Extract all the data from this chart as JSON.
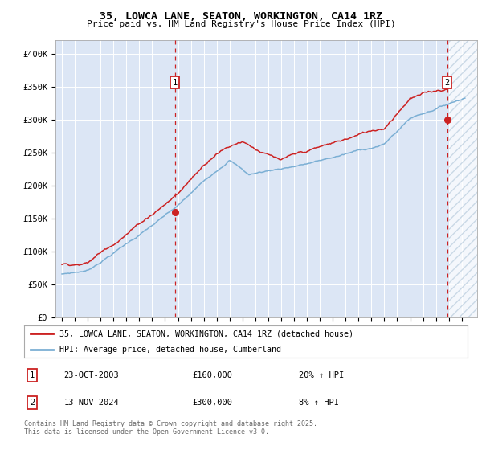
{
  "title": "35, LOWCA LANE, SEATON, WORKINGTON, CA14 1RZ",
  "subtitle": "Price paid vs. HM Land Registry's House Price Index (HPI)",
  "legend_line1": "35, LOWCA LANE, SEATON, WORKINGTON, CA14 1RZ (detached house)",
  "legend_line2": "HPI: Average price, detached house, Cumberland",
  "transaction1_date": "23-OCT-2003",
  "transaction1_price": 160000,
  "transaction1_hpi": "20% ↑ HPI",
  "transaction2_date": "13-NOV-2024",
  "transaction2_price": 300000,
  "transaction2_hpi": "8% ↑ HPI",
  "footnote": "Contains HM Land Registry data © Crown copyright and database right 2025.\nThis data is licensed under the Open Government Licence v3.0.",
  "hpi_color": "#7bafd4",
  "price_color": "#cc2222",
  "background_color": "#dce6f5",
  "ylim": [
    0,
    420000
  ],
  "yticks": [
    0,
    50000,
    100000,
    150000,
    200000,
    250000,
    300000,
    350000,
    400000
  ],
  "xlim_start": 1994.5,
  "xlim_end": 2027.2
}
